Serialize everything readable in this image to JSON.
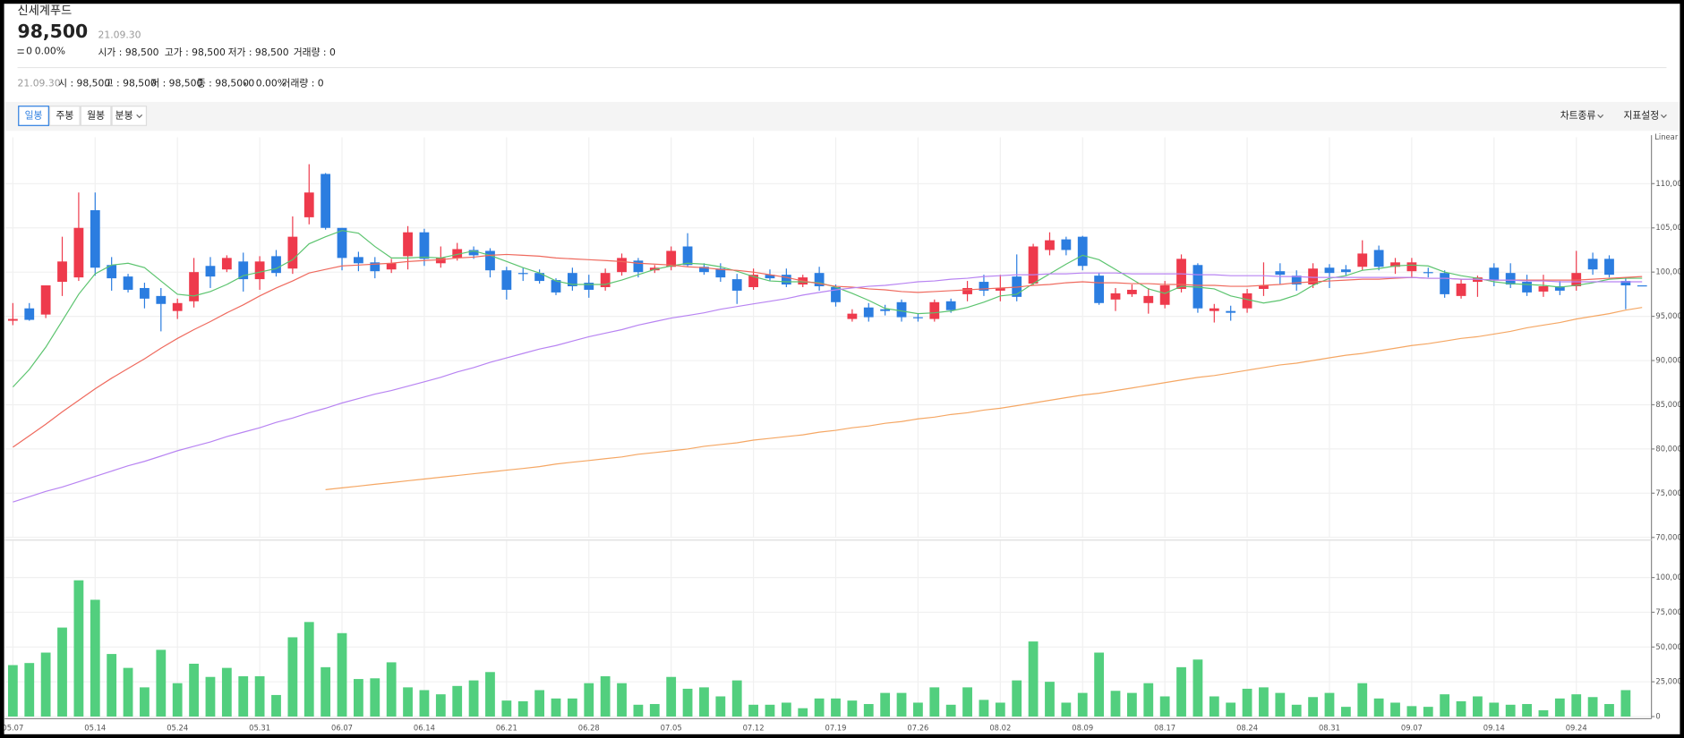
{
  "header": {
    "name": "신세계푸드",
    "price": "98,500",
    "date": "21.09.30",
    "change": "0",
    "change_rate": "0.00%",
    "stats": [
      "시가 : 98,500",
      "고가 : 98,500",
      "저가 : 98,500",
      "거래량 : 0"
    ]
  },
  "info_bar": {
    "date": "21.09.30",
    "items": [
      "시 : 98,500",
      "고 : 98,500",
      "저 : 98,500",
      "종 : 98,500"
    ],
    "change": "0",
    "change_rate": "0.00%",
    "volume": "거래량 : 0"
  },
  "toolbar": {
    "periods": [
      "일봉",
      "주봉",
      "월봉",
      "분봉"
    ],
    "menus": [
      "차트종류",
      "지표설정"
    ]
  },
  "chart_data": [
    {
      "type": "candlestick",
      "scale_label": "Linear",
      "up_color": "#ee3a4c",
      "down_color": "#2b7de0",
      "grid": true,
      "categories": [
        "05.07",
        null,
        null,
        null,
        null,
        "05.14",
        null,
        null,
        null,
        null,
        "05.24",
        null,
        null,
        null,
        null,
        "05.31",
        null,
        null,
        null,
        null,
        "06.07",
        null,
        null,
        null,
        null,
        "06.14",
        null,
        null,
        null,
        null,
        "06.21",
        null,
        null,
        null,
        null,
        "06.28",
        null,
        null,
        null,
        null,
        "07.05",
        null,
        null,
        null,
        null,
        "07.12",
        null,
        null,
        null,
        null,
        "07.19",
        null,
        null,
        null,
        null,
        "07.26",
        null,
        null,
        null,
        null,
        "08.02",
        null,
        null,
        null,
        null,
        "08.09",
        null,
        null,
        null,
        null,
        "08.17",
        null,
        null,
        null,
        null,
        "08.24",
        null,
        null,
        null,
        null,
        "08.31",
        null,
        null,
        null,
        null,
        "09.07",
        null,
        null,
        null,
        null,
        "09.14",
        null,
        null,
        null,
        null,
        "09.24",
        null,
        null,
        null,
        null
      ],
      "open": [
        94500,
        95900,
        95200,
        98900,
        99400,
        107000,
        100800,
        99500,
        98200,
        97300,
        95600,
        96700,
        100700,
        100300,
        101200,
        99200,
        101800,
        100400,
        106200,
        111100,
        105000,
        101700,
        101100,
        100300,
        101800,
        104500,
        101000,
        101600,
        102500,
        102400,
        100200,
        99900,
        99900,
        99100,
        99900,
        98800,
        98300,
        100000,
        101300,
        100200,
        100600,
        102900,
        100600,
        100400,
        99200,
        98300,
        99700,
        99700,
        98600,
        99900,
        98300,
        94700,
        96000,
        95800,
        96600,
        94900,
        94700,
        96700,
        97500,
        98900,
        97900,
        99500,
        98700,
        102500,
        103700,
        104000,
        99600,
        96900,
        97500,
        96500,
        96300,
        98100,
        100800,
        95600,
        95600,
        95900,
        98100,
        100100,
        99600,
        98600,
        100500,
        100300,
        100600,
        102500,
        100600,
        100100,
        100000,
        99900,
        97300,
        98900,
        100500,
        99900,
        98900,
        97800,
        98400,
        98400,
        101500,
        101500,
        99000,
        98500
      ],
      "high": [
        96500,
        96500,
        98500,
        104000,
        109000,
        109000,
        101700,
        99800,
        98800,
        98200,
        97000,
        101600,
        101700,
        101900,
        102200,
        101800,
        102500,
        106300,
        112200,
        111200,
        105000,
        102300,
        101700,
        101500,
        105200,
        104900,
        102900,
        103300,
        102900,
        102700,
        100600,
        100500,
        100300,
        99300,
        100500,
        99700,
        100400,
        102100,
        101600,
        100800,
        102900,
        104400,
        101000,
        101000,
        99800,
        100400,
        100300,
        100400,
        99700,
        100600,
        98600,
        95800,
        96500,
        96300,
        96900,
        95300,
        96900,
        97000,
        99000,
        99700,
        99700,
        102000,
        103200,
        104500,
        104000,
        104100,
        99900,
        98200,
        98600,
        98200,
        99000,
        102000,
        101000,
        96400,
        96200,
        98100,
        101100,
        101000,
        100200,
        101000,
        100900,
        100800,
        103600,
        103000,
        101600,
        101600,
        100500,
        100200,
        99200,
        99600,
        101000,
        101000,
        99700,
        99700,
        99000,
        102400,
        102200,
        101900,
        99400,
        98500
      ],
      "low": [
        94000,
        94500,
        94800,
        97300,
        99000,
        99600,
        97900,
        97700,
        95900,
        93300,
        94700,
        96000,
        98200,
        100000,
        97800,
        98000,
        99500,
        99800,
        105400,
        104800,
        100200,
        100100,
        99300,
        99900,
        100300,
        100700,
        100500,
        101300,
        101500,
        99400,
        96900,
        99000,
        98700,
        97400,
        97900,
        97100,
        97900,
        99600,
        99400,
        99900,
        100200,
        100600,
        99700,
        98900,
        96400,
        98000,
        99000,
        98300,
        98300,
        97900,
        96100,
        94400,
        94400,
        95100,
        94400,
        94400,
        94400,
        95400,
        96700,
        97300,
        96700,
        96700,
        98500,
        101900,
        101900,
        100200,
        96300,
        95600,
        97200,
        95300,
        95900,
        97700,
        95400,
        94300,
        94500,
        95400,
        97300,
        98600,
        97900,
        98200,
        98200,
        99600,
        100200,
        100200,
        99800,
        99400,
        99400,
        97100,
        97000,
        97200,
        98400,
        98200,
        97300,
        97200,
        97400,
        97900,
        99700,
        99400,
        95800,
        98500
      ],
      "close": [
        94700,
        94600,
        98500,
        101200,
        105000,
        100500,
        99300,
        98000,
        97000,
        96400,
        96500,
        100000,
        99500,
        101600,
        99200,
        101200,
        99900,
        104000,
        109000,
        105000,
        101600,
        101000,
        100100,
        101000,
        104500,
        101500,
        101600,
        102600,
        101900,
        100200,
        98000,
        99800,
        99000,
        97700,
        98400,
        98000,
        99900,
        101600,
        100000,
        100500,
        102400,
        100800,
        100000,
        99400,
        97900,
        99700,
        99300,
        98600,
        99400,
        98400,
        96600,
        95300,
        94900,
        95600,
        94900,
        94800,
        96600,
        95700,
        98200,
        97900,
        98200,
        97200,
        102900,
        103600,
        102500,
        100700,
        96500,
        97600,
        98000,
        97300,
        98500,
        101500,
        95900,
        95900,
        95400,
        97600,
        98500,
        99700,
        98600,
        100400,
        99900,
        100000,
        102100,
        100600,
        101100,
        101100,
        99900,
        97500,
        98700,
        99400,
        99100,
        98600,
        97700,
        98400,
        97900,
        99900,
        100300,
        99700,
        98500,
        98500
      ],
      "overlays": [
        {
          "color": "#5cc46f",
          "values": [
            87000,
            89000,
            91500,
            94500,
            97500,
            99800,
            100800,
            101000,
            100500,
            99000,
            97500,
            97300,
            97800,
            98600,
            99600,
            100000,
            100400,
            101400,
            103200,
            104000,
            104700,
            104400,
            102900,
            101600,
            101600,
            101700,
            101600,
            102000,
            102400,
            101900,
            101200,
            100500,
            99900,
            99000,
            98600,
            98600,
            98600,
            99100,
            99700,
            100300,
            100700,
            101000,
            100900,
            100600,
            100100,
            99500,
            99000,
            98900,
            98900,
            98800,
            98300,
            97600,
            96800,
            95900,
            95600,
            95300,
            95400,
            95600,
            96000,
            96600,
            97300,
            97500,
            98700,
            99800,
            100900,
            101900,
            101400,
            100300,
            99200,
            98100,
            97600,
            98400,
            98300,
            98100,
            97300,
            96900,
            96500,
            96800,
            97400,
            98500,
            99300,
            99600,
            100200,
            100400,
            100700,
            100800,
            100700,
            100000,
            99600,
            99300,
            98900,
            98700,
            98600,
            98500,
            98300,
            98500,
            98800,
            99200,
            99300,
            99300
          ]
        },
        {
          "color": "#ef6a5e",
          "values": [
            80200,
            81500,
            82800,
            84200,
            85500,
            86800,
            88000,
            89100,
            90200,
            91400,
            92500,
            93500,
            94400,
            95400,
            96300,
            97300,
            98200,
            99000,
            99900,
            100300,
            100700,
            100800,
            100900,
            101000,
            101200,
            101300,
            101400,
            101600,
            101700,
            101900,
            102000,
            101900,
            101800,
            101600,
            101500,
            101400,
            101300,
            101200,
            101000,
            100900,
            100800,
            100600,
            100500,
            100300,
            100200,
            100000,
            99700,
            99400,
            99000,
            98700,
            98400,
            98300,
            98100,
            98000,
            97800,
            97700,
            97800,
            97900,
            98000,
            98100,
            98200,
            98300,
            98500,
            98600,
            98800,
            98900,
            98800,
            98800,
            98700,
            98700,
            98600,
            98600,
            98500,
            98500,
            98400,
            98400,
            98500,
            98600,
            98800,
            98900,
            99000,
            99100,
            99200,
            99200,
            99300,
            99400,
            99300,
            99300,
            99200,
            99200,
            99100,
            99100,
            99100,
            99100,
            99100,
            99100,
            99200,
            99300,
            99400,
            99500
          ]
        },
        {
          "color": "#b884f2",
          "values": [
            74000,
            74600,
            75200,
            75700,
            76300,
            76900,
            77500,
            78100,
            78600,
            79200,
            79800,
            80300,
            80800,
            81400,
            81900,
            82400,
            83000,
            83500,
            84100,
            84600,
            85200,
            85700,
            86200,
            86600,
            87100,
            87600,
            88100,
            88700,
            89200,
            89800,
            90300,
            90800,
            91300,
            91700,
            92200,
            92700,
            93100,
            93500,
            94000,
            94400,
            94800,
            95100,
            95400,
            95800,
            96100,
            96400,
            96700,
            97000,
            97400,
            97700,
            98000,
            98200,
            98400,
            98500,
            98700,
            98900,
            99000,
            99200,
            99300,
            99500,
            99600,
            99700,
            99700,
            99800,
            99800,
            99900,
            99900,
            99900,
            99800,
            99800,
            99800,
            99800,
            99700,
            99700,
            99600,
            99600,
            99600,
            99500,
            99500,
            99400,
            99400,
            99400,
            99400,
            99400,
            99400,
            99400,
            99300,
            99300,
            99200,
            99200,
            99100,
            99100,
            99000,
            99000,
            98900,
            98900,
            98900,
            98900,
            98900,
            98900
          ]
        },
        {
          "color": "#f5a764",
          "values": [
            null,
            null,
            null,
            null,
            null,
            null,
            null,
            null,
            null,
            null,
            null,
            null,
            null,
            null,
            null,
            null,
            null,
            null,
            null,
            75400,
            75600,
            75800,
            76000,
            76200,
            76400,
            76600,
            76800,
            77000,
            77200,
            77400,
            77600,
            77800,
            78000,
            78300,
            78500,
            78700,
            78900,
            79100,
            79400,
            79600,
            79800,
            80000,
            80300,
            80500,
            80700,
            81000,
            81200,
            81400,
            81600,
            81900,
            82100,
            82400,
            82600,
            82900,
            83100,
            83400,
            83600,
            83900,
            84100,
            84400,
            84600,
            84900,
            85200,
            85500,
            85800,
            86100,
            86300,
            86600,
            86900,
            87200,
            87500,
            87800,
            88100,
            88300,
            88600,
            88900,
            89200,
            89500,
            89700,
            90000,
            90300,
            90600,
            90800,
            91100,
            91400,
            91700,
            91900,
            92200,
            92500,
            92700,
            93000,
            93300,
            93700,
            94000,
            94300,
            94700,
            95000,
            95300,
            95700,
            96000
          ]
        }
      ],
      "ylim": [
        70000,
        115000
      ],
      "yticks": [
        {
          "value": 70000,
          "label": "70,000"
        },
        {
          "value": 75000,
          "label": "75,000"
        },
        {
          "value": 80000,
          "label": "80,000"
        },
        {
          "value": 85000,
          "label": "85,000"
        },
        {
          "value": 90000,
          "label": "90,000"
        },
        {
          "value": 95000,
          "label": "95,000"
        },
        {
          "value": 100000,
          "label": "100,000"
        },
        {
          "value": 105000,
          "label": "105,000"
        },
        {
          "value": 110000,
          "label": "110,000"
        }
      ]
    },
    {
      "type": "bar",
      "color": "#52cf7e",
      "grid": true,
      "values": [
        37000,
        38500,
        46000,
        64000,
        98000,
        84000,
        45000,
        35000,
        21000,
        48000,
        24000,
        38000,
        28500,
        35000,
        29000,
        29000,
        15500,
        57000,
        68000,
        35500,
        60000,
        27000,
        27500,
        39000,
        21000,
        19000,
        16000,
        22000,
        26000,
        32000,
        11500,
        11000,
        19000,
        13000,
        13000,
        24000,
        29000,
        24000,
        8500,
        9000,
        28500,
        20000,
        21000,
        14500,
        26000,
        8500,
        8500,
        10000,
        6000,
        13000,
        13000,
        11500,
        9000,
        17000,
        17000,
        10000,
        21000,
        8500,
        21000,
        12000,
        10000,
        26000,
        54000,
        25000,
        10000,
        17000,
        46000,
        18500,
        17000,
        24000,
        14500,
        35500,
        41000,
        14500,
        10000,
        20000,
        21000,
        17000,
        8500,
        14000,
        17000,
        7000,
        24000,
        13000,
        10000,
        7500,
        7000,
        16000,
        11000,
        14500,
        10000,
        8500,
        9000,
        4500,
        13000,
        16000,
        14000,
        9000,
        19000,
        0
      ],
      "ylim": [
        0,
        125000
      ],
      "yticks": [
        0,
        {
          "value": 25000,
          "label": "25,000"
        },
        {
          "value": 50000,
          "label": "50,000"
        },
        {
          "value": 75000,
          "label": "75,000"
        },
        {
          "value": 100000,
          "label": "100,000"
        }
      ]
    }
  ]
}
